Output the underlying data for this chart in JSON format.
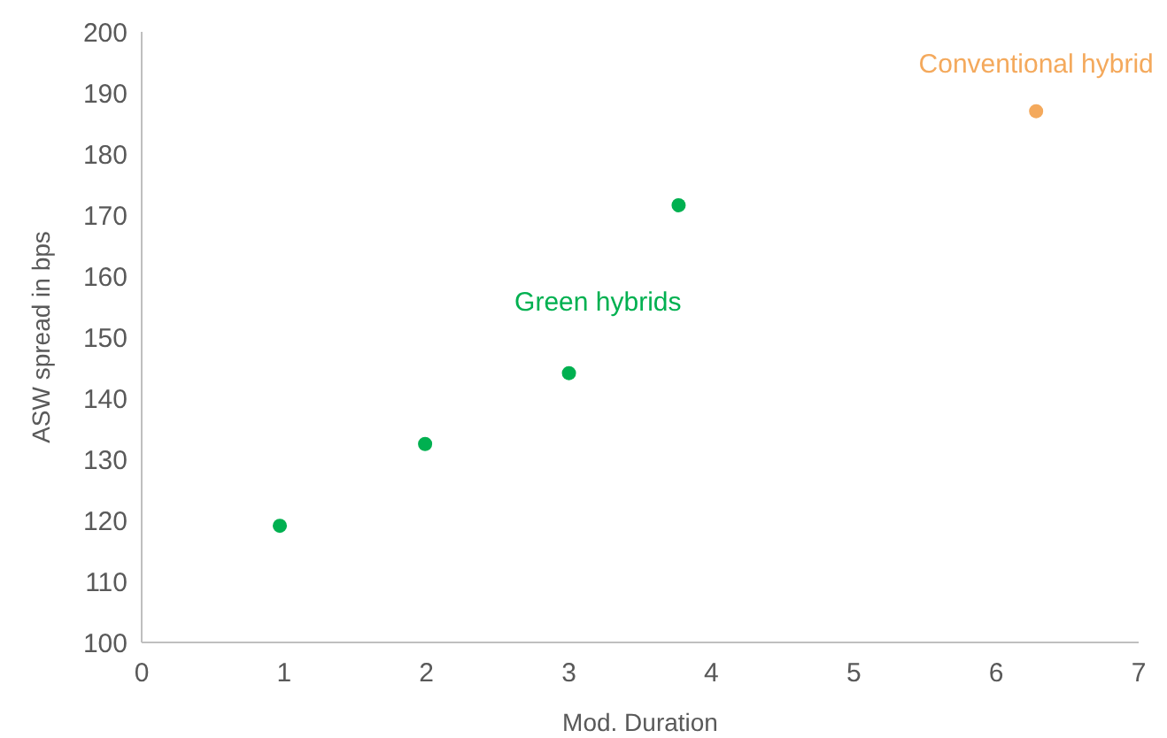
{
  "chart_data": {
    "type": "scatter",
    "xlabel": "Mod. Duration",
    "ylabel": "ASW spread in bps",
    "xlim": [
      0,
      7
    ],
    "xticks": [
      0,
      1,
      2,
      3,
      4,
      5,
      6,
      7
    ],
    "ylim": [
      100,
      200
    ],
    "yticks": [
      100,
      110,
      120,
      130,
      140,
      150,
      160,
      170,
      180,
      190,
      200
    ],
    "grid": false,
    "marker": "circle",
    "series": [
      {
        "name": "Green hybrids",
        "color": "#00b050",
        "x": [
          0.97,
          1.99,
          3.0,
          3.77
        ],
        "values": [
          119.1,
          132.5,
          144.1,
          171.6
        ]
      },
      {
        "name": "Conventional hybrid",
        "color": "#f4a95c",
        "x": [
          6.28
        ],
        "values": [
          187
        ]
      }
    ]
  }
}
